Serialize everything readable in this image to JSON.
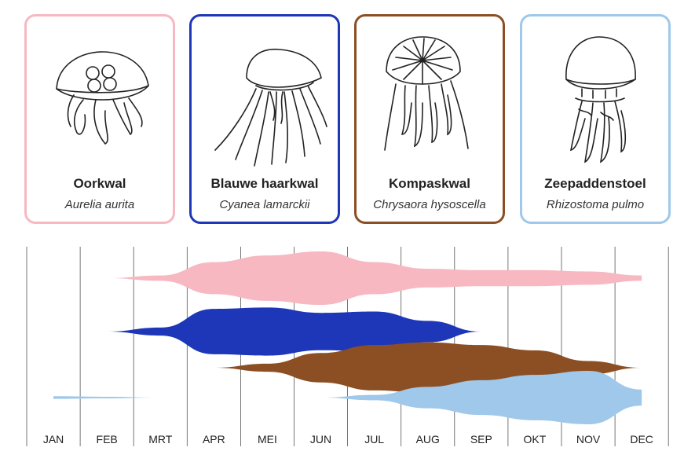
{
  "species": [
    {
      "name": "Oorkwal",
      "latin": "Aurelia aurita",
      "color": "#f7b8c2",
      "icon": "moon-jellyfish-icon"
    },
    {
      "name": "Blauwe haarkwal",
      "latin": "Cyanea lamarckii",
      "color": "#1d37b8",
      "icon": "blue-jellyfish-icon"
    },
    {
      "name": "Kompaskwal",
      "latin": "Chrysaora hysoscella",
      "color": "#8c4f24",
      "icon": "compass-jellyfish-icon"
    },
    {
      "name": "Zeepaddenstoel",
      "latin": "Rhizostoma pulmo",
      "color": "#9fc8ea",
      "icon": "barrel-jellyfish-icon"
    }
  ],
  "months": [
    "JAN",
    "FEB",
    "MRT",
    "APR",
    "MEI",
    "JUN",
    "JUL",
    "AUG",
    "SEP",
    "OKT",
    "NOV",
    "DEC"
  ],
  "chart_data": {
    "type": "area",
    "title": "",
    "xlabel": "",
    "ylabel": "",
    "categories": [
      "JAN",
      "FEB",
      "MRT",
      "APR",
      "MEI",
      "JUN",
      "JUL",
      "AUG",
      "SEP",
      "OKT",
      "NOV",
      "DEC"
    ],
    "series": [
      {
        "name": "Oorkwal",
        "color": "#f7b8c2",
        "values": [
          0,
          0,
          0.1,
          0.6,
          0.85,
          1.0,
          0.6,
          0.35,
          0.3,
          0.3,
          0.25,
          0.1
        ]
      },
      {
        "name": "Blauwe haarkwal",
        "color": "#1d37b8",
        "values": [
          0,
          0,
          0.15,
          0.85,
          0.9,
          0.7,
          0.75,
          0.4,
          0,
          0,
          0,
          0
        ]
      },
      {
        "name": "Kompaskwal",
        "color": "#8c4f24",
        "values": [
          0,
          0,
          0,
          0,
          0.15,
          0.55,
          0.85,
          0.95,
          0.85,
          0.65,
          0.25,
          0
        ]
      },
      {
        "name": "Zeepaddenstoel",
        "color": "#9fc8ea",
        "values": [
          0.05,
          0.03,
          0,
          0,
          0,
          0,
          0.1,
          0.4,
          0.65,
          0.85,
          1.0,
          0.3
        ]
      }
    ]
  }
}
